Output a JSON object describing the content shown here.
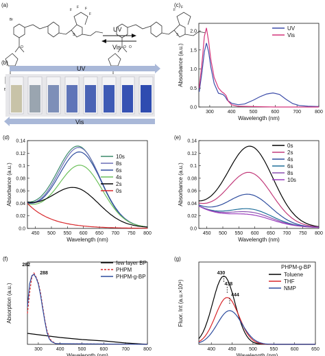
{
  "figure": {
    "panel_letters": [
      "(a)",
      "(b)",
      "(c)",
      "(d)",
      "(e)",
      "(f)",
      "(g)"
    ],
    "scheme_a": {
      "arrow_top": "UV",
      "arrow_bottom": "Vis",
      "molecule_letters": [
        "Br",
        "F",
        "F",
        "F",
        "F",
        "F",
        "F",
        "S",
        "S",
        "O",
        "O",
        "O",
        "Br"
      ]
    },
    "photo_b": {
      "top_label": "UV",
      "bottom_label": "Vis",
      "vial_colors": [
        "#c8c3a8",
        "#9aa5b0",
        "#7d8fb8",
        "#5f74b8",
        "#4a63b5",
        "#3f5bb5",
        "#3652b3",
        "#2f4cb0"
      ]
    }
  },
  "chart_data": [
    {
      "id": "c",
      "type": "line",
      "xlabel": "Wavelength (nm)",
      "ylabel": "Absorbance (a.u.)",
      "xlim": [
        250,
        800
      ],
      "ylim": [
        0,
        2.2
      ],
      "xticks": [
        300,
        400,
        500,
        600,
        700,
        800
      ],
      "yticks": [
        0.0,
        0.5,
        1.0,
        1.5,
        2.0
      ],
      "legend": "top-right",
      "series": [
        {
          "name": "UV",
          "color": "#3a4aa8",
          "x": [
            252,
            265,
            275,
            285,
            295,
            305,
            320,
            340,
            360,
            370,
            380,
            400,
            430,
            460,
            500,
            530,
            560,
            590,
            620,
            650,
            680,
            710,
            750,
            800
          ],
          "y": [
            0.4,
            0.95,
            1.45,
            1.68,
            1.45,
            1.05,
            0.62,
            0.36,
            0.33,
            0.28,
            0.18,
            0.1,
            0.06,
            0.08,
            0.18,
            0.27,
            0.34,
            0.37,
            0.33,
            0.2,
            0.09,
            0.04,
            0.02,
            0.01
          ]
        },
        {
          "name": "Vis",
          "color": "#d4337a",
          "x": [
            252,
            265,
            275,
            285,
            295,
            305,
            320,
            340,
            355,
            365,
            375,
            385,
            400,
            430,
            500,
            600,
            800
          ],
          "y": [
            0.5,
            1.2,
            1.85,
            2.08,
            1.72,
            1.25,
            0.78,
            0.5,
            0.4,
            0.36,
            0.3,
            0.15,
            0.06,
            0.02,
            0.01,
            0.0,
            0.0
          ]
        }
      ]
    },
    {
      "id": "d",
      "type": "line",
      "xlabel": "Wavelength (nm)",
      "ylabel": "Absorbance (a.u.)",
      "xlim": [
        425,
        800
      ],
      "ylim": [
        0,
        0.14
      ],
      "xticks": [
        450,
        500,
        550,
        600,
        650,
        700,
        750,
        800
      ],
      "yticks": [
        0.0,
        0.02,
        0.04,
        0.06,
        0.08,
        0.1,
        0.12,
        0.14
      ],
      "legend": "right",
      "series": [
        {
          "name": "10s",
          "color": "#3a8a6a",
          "peak": 0.122,
          "x0": 585,
          "w": 95
        },
        {
          "name": "8s",
          "color": "#6a6fb5",
          "peak": 0.12,
          "x0": 588,
          "w": 94
        },
        {
          "name": "6s",
          "color": "#2d4c9e",
          "peak": 0.113,
          "x0": 590,
          "w": 95
        },
        {
          "name": "4s",
          "color": "#6cc05a",
          "peak": 0.092,
          "x0": 592,
          "w": 96
        },
        {
          "name": "2s",
          "color": "#000000",
          "peak": 0.055,
          "x0": 575,
          "w": 105
        },
        {
          "name": "0s",
          "color": "#d8262a",
          "peak": 0.0,
          "x0": 0,
          "w": 1
        }
      ]
    },
    {
      "id": "e",
      "type": "line",
      "xlabel": "Wavelength (nm)",
      "ylabel": "Absorbance (a.u.)",
      "xlim": [
        425,
        800
      ],
      "ylim": [
        0,
        0.14
      ],
      "xticks": [
        450,
        500,
        550,
        600,
        650,
        700,
        750,
        800
      ],
      "yticks": [
        0.0,
        0.02,
        0.04,
        0.06,
        0.08,
        0.1,
        0.12,
        0.14
      ],
      "legend": "top-right",
      "series": [
        {
          "name": "0s",
          "color": "#000000",
          "peak": 0.122,
          "x0": 587,
          "w": 100
        },
        {
          "name": "2s",
          "color": "#c23a7a",
          "peak": 0.08,
          "x0": 585,
          "w": 98
        },
        {
          "name": "4s",
          "color": "#2d4c9e",
          "peak": 0.045,
          "x0": 585,
          "w": 95
        },
        {
          "name": "6s",
          "color": "#1e6e9a",
          "peak": 0.022,
          "x0": 590,
          "w": 95
        },
        {
          "name": "8s",
          "color": "#8a4fb0",
          "peak": 0.017,
          "x0": 590,
          "w": 95
        },
        {
          "name": "10s",
          "color": "#9b3dbd",
          "peak": 0.013,
          "x0": 590,
          "w": 95
        }
      ]
    },
    {
      "id": "f",
      "type": "line",
      "xlabel": "Wavelength (nm)",
      "ylabel": "Absorption (a.u.)",
      "xlim": [
        250,
        800
      ],
      "ylim": [
        0,
        1.2
      ],
      "xticks": [
        300,
        400,
        500,
        600,
        700,
        800
      ],
      "legend": "top-right",
      "annotations": [
        {
          "text": "282",
          "x": 282
        },
        {
          "text": "288",
          "x": 288
        }
      ],
      "series": [
        {
          "name": "few layer BP",
          "color": "#000000",
          "dash": "",
          "x": [
            250,
            300,
            400,
            500,
            600,
            700,
            800
          ],
          "y": [
            0.16,
            0.14,
            0.1,
            0.07,
            0.05,
            0.02,
            0.0
          ]
        },
        {
          "name": "PHPM",
          "color": "#d8262a",
          "dash": "3,2",
          "x": [
            250,
            260,
            270,
            280,
            290,
            300,
            310,
            320,
            330,
            340,
            350,
            360,
            380,
            800
          ],
          "y": [
            0.45,
            0.75,
            0.98,
            1.04,
            0.98,
            0.9,
            0.75,
            0.55,
            0.35,
            0.2,
            0.1,
            0.05,
            0.01,
            0.0
          ]
        },
        {
          "name": "PHPM-g-BP",
          "color": "#2d4c9e",
          "dash": "",
          "x": [
            250,
            260,
            270,
            280,
            290,
            300,
            310,
            320,
            330,
            340,
            350,
            360,
            380,
            800
          ],
          "y": [
            0.55,
            0.88,
            1.0,
            1.02,
            0.97,
            0.88,
            0.72,
            0.52,
            0.33,
            0.17,
            0.08,
            0.04,
            0.01,
            0.0
          ]
        }
      ]
    },
    {
      "id": "g",
      "type": "line",
      "xlabel": "Wavelength (nm)",
      "ylabel": "Fluor. Int (a.u.×10⁶)",
      "xlim": [
        370,
        650
      ],
      "ylim": [
        0,
        10
      ],
      "xticks": [
        400,
        450,
        500,
        550,
        600,
        650
      ],
      "legend": "top-right",
      "legend_title": "PHPM-g-BP",
      "annotations": [
        {
          "text": "430",
          "x": 430
        },
        {
          "text": "438",
          "x": 438
        },
        {
          "text": "444",
          "x": 444
        }
      ],
      "series": [
        {
          "name": "Toluene",
          "color": "#000000",
          "peak": 8.3,
          "x0": 430,
          "w": 38
        },
        {
          "name": "THF",
          "color": "#d8262a",
          "peak": 5.7,
          "x0": 438,
          "w": 40
        },
        {
          "name": "NMP",
          "color": "#2d4c9e",
          "peak": 4.1,
          "x0": 444,
          "w": 42
        }
      ]
    }
  ]
}
